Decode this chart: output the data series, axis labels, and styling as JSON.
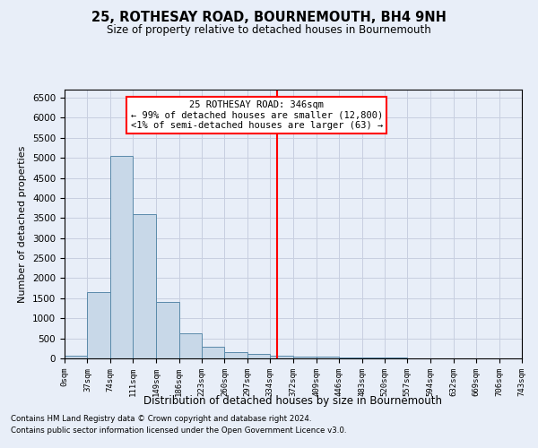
{
  "title": "25, ROTHESAY ROAD, BOURNEMOUTH, BH4 9NH",
  "subtitle": "Size of property relative to detached houses in Bournemouth",
  "xlabel": "Distribution of detached houses by size in Bournemouth",
  "ylabel": "Number of detached properties",
  "footnote1": "Contains HM Land Registry data © Crown copyright and database right 2024.",
  "footnote2": "Contains public sector information licensed under the Open Government Licence v3.0.",
  "bar_color": "#c8d8e8",
  "bar_edge_color": "#5a8aaa",
  "grid_color": "#c8cfe0",
  "background_color": "#e8eef8",
  "vline_x": 346,
  "vline_color": "red",
  "annotation_text": "25 ROTHESAY ROAD: 346sqm\n← 99% of detached houses are smaller (12,800)\n<1% of semi-detached houses are larger (63) →",
  "annotation_box_color": "white",
  "annotation_box_edge": "red",
  "bin_edges": [
    0,
    37,
    74,
    111,
    149,
    186,
    223,
    260,
    297,
    334,
    372,
    409,
    446,
    483,
    520,
    557,
    594,
    632,
    669,
    706,
    743
  ],
  "bar_heights": [
    70,
    1650,
    5050,
    3600,
    1400,
    620,
    290,
    155,
    115,
    75,
    55,
    45,
    30,
    20,
    15,
    10,
    8,
    5,
    3,
    2
  ],
  "ylim": [
    0,
    6700
  ],
  "yticks": [
    0,
    500,
    1000,
    1500,
    2000,
    2500,
    3000,
    3500,
    4000,
    4500,
    5000,
    5500,
    6000,
    6500
  ]
}
